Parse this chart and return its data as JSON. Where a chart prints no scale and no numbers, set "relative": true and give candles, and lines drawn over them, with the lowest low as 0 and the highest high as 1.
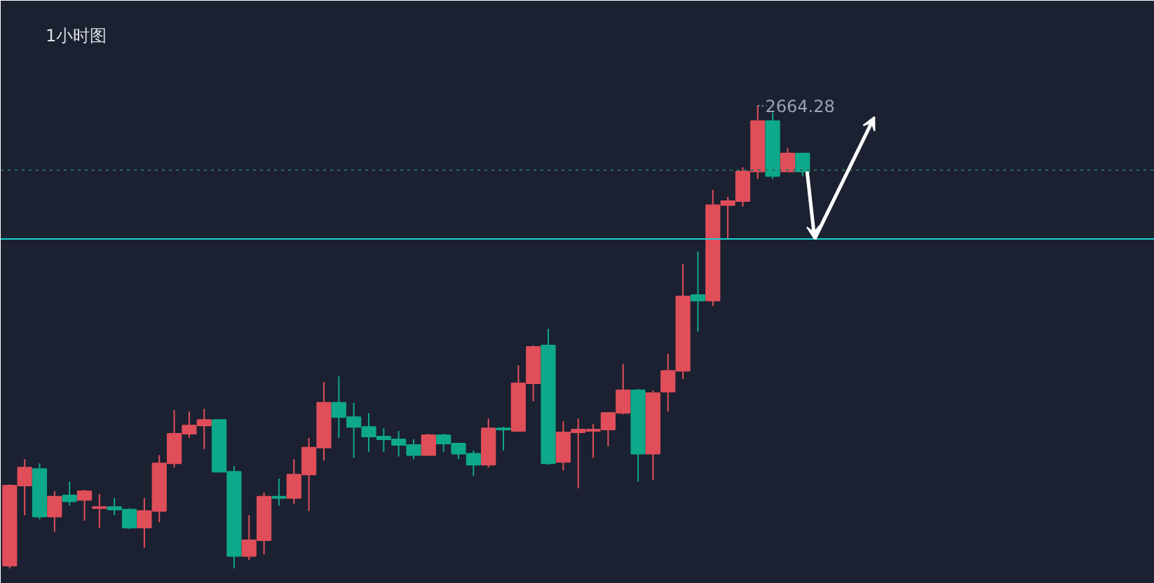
{
  "chart_data": {
    "type": "candlestick",
    "title": "1小时图",
    "relative": true,
    "categories": [
      null,
      null,
      null,
      null,
      null,
      null,
      null,
      null,
      null,
      null,
      null,
      null,
      null,
      null,
      null,
      null,
      null,
      null,
      null,
      null,
      null,
      null,
      null,
      null,
      null,
      null,
      null,
      null,
      null,
      null,
      null,
      null,
      null,
      null,
      null,
      null,
      null,
      null,
      null,
      null,
      null,
      null,
      null,
      null,
      null,
      null,
      null,
      null,
      null,
      null,
      null,
      null,
      null,
      null
    ],
    "ohlc": [
      [
        0.006,
        0.182,
        0,
        0.179
      ],
      [
        0.179,
        0.236,
        0.115,
        0.218
      ],
      [
        0.215,
        0.227,
        0.106,
        0.112
      ],
      [
        0.112,
        0.167,
        0.079,
        0.155
      ],
      [
        0.158,
        0.188,
        0.136,
        0.145
      ],
      [
        0.148,
        0.17,
        0.103,
        0.167
      ],
      [
        0.13,
        0.161,
        0.088,
        0.133
      ],
      [
        0.133,
        0.152,
        0.115,
        0.127
      ],
      [
        0.127,
        0.13,
        0.085,
        0.088
      ],
      [
        0.088,
        0.152,
        0.045,
        0.124
      ],
      [
        0.124,
        0.245,
        0.1,
        0.227
      ],
      [
        0.227,
        0.342,
        0.218,
        0.291
      ],
      [
        0.291,
        0.339,
        0.282,
        0.309
      ],
      [
        0.309,
        0.345,
        0.258,
        0.321
      ],
      [
        0.321,
        0.321,
        0.209,
        0.209
      ],
      [
        0.209,
        0.221,
        0,
        0.027
      ],
      [
        0.027,
        0.115,
        0.018,
        0.061
      ],
      [
        0.061,
        0.164,
        0.03,
        0.155
      ],
      [
        0.155,
        0.194,
        0.136,
        0.152
      ],
      [
        0.152,
        0.236,
        0.139,
        0.203
      ],
      [
        0.203,
        0.282,
        0.124,
        0.261
      ],
      [
        0.261,
        0.403,
        0.233,
        0.358
      ],
      [
        0.358,
        0.415,
        0.282,
        0.327
      ],
      [
        0.327,
        0.358,
        0.239,
        0.306
      ],
      [
        0.306,
        0.336,
        0.252,
        0.285
      ],
      [
        0.285,
        0.303,
        0.252,
        0.279
      ],
      [
        0.279,
        0.297,
        0.242,
        0.267
      ],
      [
        0.267,
        0.279,
        0.236,
        0.245
      ],
      [
        0.245,
        0.291,
        0.245,
        0.288
      ],
      [
        0.288,
        0.291,
        0.252,
        0.27
      ],
      [
        0.27,
        0.27,
        0.236,
        0.248
      ],
      [
        0.248,
        0.255,
        0.2,
        0.224
      ],
      [
        0.224,
        0.324,
        0.218,
        0.303
      ],
      [
        0.303,
        0.306,
        0.255,
        0.3
      ],
      [
        0.297,
        0.439,
        0.297,
        0.4
      ],
      [
        0.4,
        0.482,
        0.361,
        0.479
      ],
      [
        0.482,
        0.518,
        0.224,
        0.227
      ],
      [
        0.23,
        0.318,
        0.212,
        0.294
      ],
      [
        0.294,
        0.324,
        0.173,
        0.3
      ],
      [
        0.297,
        0.312,
        0.239,
        0.3
      ],
      [
        0.3,
        0.336,
        0.264,
        0.336
      ],
      [
        0.336,
        0.442,
        0.333,
        0.385
      ],
      [
        0.385,
        0.388,
        0.188,
        0.248
      ],
      [
        0.248,
        0.385,
        0.191,
        0.379
      ],
      [
        0.382,
        0.464,
        0.339,
        0.427
      ],
      [
        0.427,
        0.658,
        0.409,
        0.588
      ],
      [
        0.591,
        0.685,
        0.512,
        0.579
      ],
      [
        0.579,
        0.818,
        0.567,
        0.785
      ],
      [
        0.785,
        0.803,
        0.712,
        0.794
      ],
      [
        0.794,
        0.867,
        0.782,
        0.858
      ],
      [
        0.858,
        1,
        0.842,
        0.967
      ],
      [
        0.967,
        0.985,
        0.842,
        0.848
      ],
      [
        0.858,
        0.909,
        0.858,
        0.897
      ],
      [
        0.897,
        0.897,
        0.848,
        0.858
      ]
    ],
    "colors": [
      "#e04e5a",
      "#e04e5a",
      "#0ea88a",
      "#e04e5a",
      "#0ea88a",
      "#e04e5a",
      "#e04e5a",
      "#0ea88a",
      "#0ea88a",
      "#e04e5a",
      "#e04e5a",
      "#e04e5a",
      "#e04e5a",
      "#e04e5a",
      "#0ea88a",
      "#0ea88a",
      "#e04e5a",
      "#e04e5a",
      "#0ea88a",
      "#e04e5a",
      "#e04e5a",
      "#e04e5a",
      "#0ea88a",
      "#0ea88a",
      "#0ea88a",
      "#0ea88a",
      "#0ea88a",
      "#0ea88a",
      "#e04e5a",
      "#0ea88a",
      "#0ea88a",
      "#0ea88a",
      "#e04e5a",
      "#0ea88a",
      "#e04e5a",
      "#e04e5a",
      "#0ea88a",
      "#e04e5a",
      "#e04e5a",
      "#e04e5a",
      "#e04e5a",
      "#e04e5a",
      "#0ea88a",
      "#e04e5a",
      "#e04e5a",
      "#e04e5a",
      "#0ea88a",
      "#e04e5a",
      "#e04e5a",
      "#e04e5a",
      "#e04e5a",
      "#0ea88a",
      "#e04e5a",
      "#0ea88a"
    ],
    "annotations": [
      "2664.28"
    ],
    "ref_lines": [
      {
        "axis": "y",
        "value": 0.712,
        "label": null,
        "color": "#19d3d3",
        "line_style": "solid"
      },
      {
        "axis": "y",
        "value": 0.861,
        "label": null,
        "color": "#2d6e62",
        "line_style": "dotted"
      }
    ]
  }
}
